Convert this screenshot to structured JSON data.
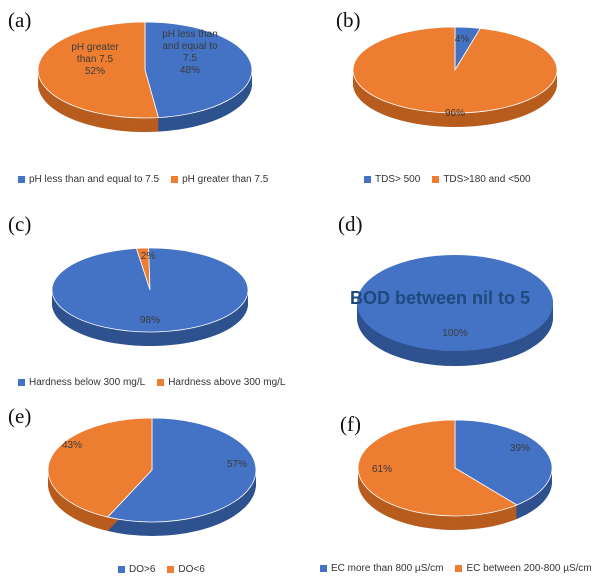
{
  "colors": {
    "blue": "#4472c4",
    "blue_side": "#2f528f",
    "orange": "#ed7d31",
    "orange_side": "#b85c1f"
  },
  "chart_data": [
    {
      "id": "a",
      "type": "pie",
      "panel_label": "(a)",
      "slices": [
        {
          "name": "pH less than and equal to 7.5",
          "value": 48,
          "color": "#4472c4",
          "label_lines": [
            "pH less than",
            "and equal to",
            "7.5",
            "48%"
          ]
        },
        {
          "name": "pH greater than 7.5",
          "value": 52,
          "color": "#ed7d31",
          "label_lines": [
            "pH greater",
            "than 7.5",
            "52%"
          ]
        }
      ],
      "legend": [
        "pH less than and equal to 7.5",
        "pH greater than 7.5"
      ]
    },
    {
      "id": "b",
      "type": "pie",
      "panel_label": "(b)",
      "slices": [
        {
          "name": "TDS> 500",
          "value": 4,
          "color": "#4472c4",
          "label_lines": [
            "4%"
          ]
        },
        {
          "name": "TDS>180 and <500",
          "value": 96,
          "color": "#ed7d31",
          "label_lines": [
            "96%"
          ]
        }
      ],
      "legend": [
        "TDS> 500",
        "TDS>180 and <500"
      ]
    },
    {
      "id": "c",
      "type": "pie",
      "panel_label": "(c)",
      "slices": [
        {
          "name": "Hardness above 300 mg/L",
          "value": 2,
          "color": "#ed7d31",
          "label_lines": [
            "2%"
          ]
        },
        {
          "name": "Hardness below 300 mg/L",
          "value": 98,
          "color": "#4472c4",
          "label_lines": [
            "98%"
          ]
        }
      ],
      "legend": [
        "Hardness below 300 mg/L",
        "Hardness above 300 mg/L"
      ]
    },
    {
      "id": "d",
      "type": "pie",
      "panel_label": "(d)",
      "overlay_text": "BOD between nil to 5",
      "slices": [
        {
          "name": "BOD between nil to 5",
          "value": 100,
          "color": "#4472c4",
          "label_lines": [
            "100%"
          ]
        }
      ],
      "legend": []
    },
    {
      "id": "e",
      "type": "pie",
      "panel_label": "(e)",
      "slices": [
        {
          "name": "DO>6",
          "value": 57,
          "color": "#4472c4",
          "label_lines": [
            "57%"
          ]
        },
        {
          "name": "DO<6",
          "value": 43,
          "color": "#ed7d31",
          "label_lines": [
            "43%"
          ]
        }
      ],
      "legend": [
        "DO>6",
        "DO<6"
      ]
    },
    {
      "id": "f",
      "type": "pie",
      "panel_label": "(f)",
      "slices": [
        {
          "name": "EC more than 800 µS/cm",
          "value": 39,
          "color": "#4472c4",
          "label_lines": [
            "39%"
          ]
        },
        {
          "name": "EC between 200-800 µS/cm",
          "value": 61,
          "color": "#ed7d31",
          "label_lines": [
            "61%"
          ]
        }
      ],
      "legend": [
        "EC more than 800 µS/cm",
        "EC between 200-800 µS/cm"
      ]
    }
  ]
}
